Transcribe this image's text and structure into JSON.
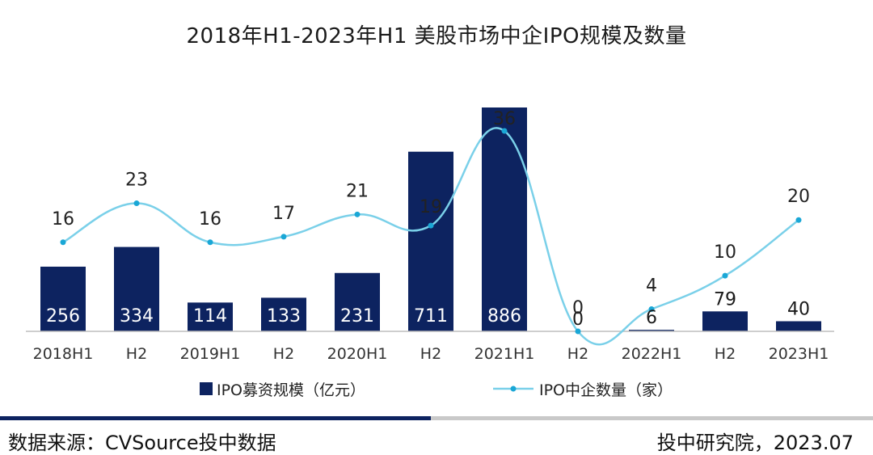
{
  "colors": {
    "bar": "#0d2360",
    "line": "#7ad0e9",
    "axis": "#bdbdbd"
  },
  "footer": {
    "source": "数据来源：CVSource投中数据",
    "org": "投中研究院，2023.07"
  },
  "chart_data": {
    "type": "bar",
    "title": "2018年H1-2023年H1  美股市场中企IPO规模及数量",
    "categories": [
      "2018H1",
      "H2",
      "2019H1",
      "H2",
      "2020H1",
      "H2",
      "2021H1",
      "H2",
      "2022H1",
      "H2",
      "2023H1"
    ],
    "series": [
      {
        "name": "IPO募资规模（亿元）",
        "type": "bar",
        "values": [
          256,
          334,
          114,
          133,
          231,
          711,
          886,
          0,
          6,
          79,
          40
        ]
      },
      {
        "name": "IPO中企数量（家）",
        "type": "line",
        "values": [
          16,
          23,
          16,
          17,
          21,
          19,
          36,
          0,
          4,
          10,
          20
        ]
      }
    ],
    "legend": "bottom",
    "grid": false
  }
}
